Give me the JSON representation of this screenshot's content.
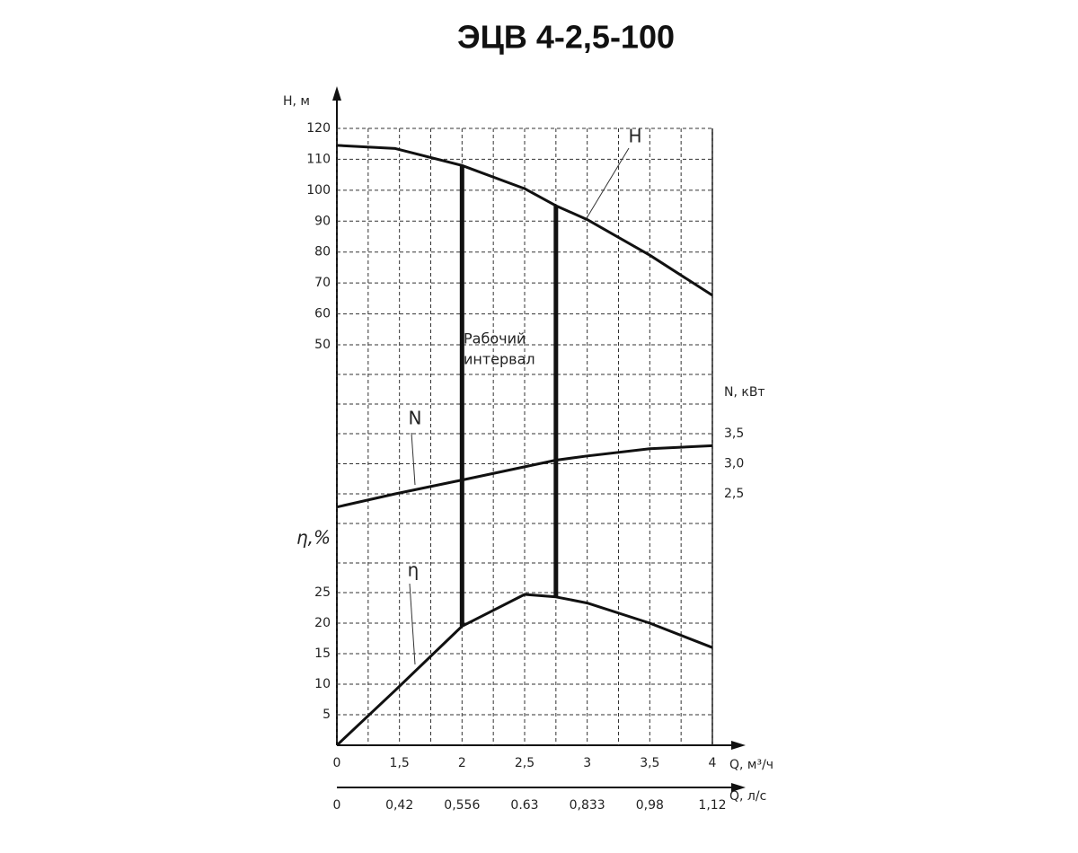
{
  "chart_data": {
    "type": "line",
    "title": "ЭЦВ 4-2,5-100",
    "xlabel": "Q, м³/ч",
    "x2label": "Q, л/с",
    "ylabel": "Н, м",
    "y2label": "N, кВт",
    "y3label": "η,%",
    "working_interval_label": [
      "Рабочий",
      "интервал"
    ],
    "x": [
      0,
      1.4,
      2,
      2.5,
      2.75,
      3,
      3.5,
      4
    ],
    "xlim": [
      0,
      4
    ],
    "xticks": [
      0,
      1.5,
      2,
      2.5,
      3,
      3.5,
      4
    ],
    "xticks_labels": [
      {
        "value": 1.5,
        "label": "1,5"
      },
      {
        "value": 2.5,
        "label": "2,5"
      },
      {
        "value": 3.5,
        "label": "3,5"
      }
    ],
    "x2ticks": [
      0,
      {
        "value": 0.42,
        "label": "0,42"
      },
      {
        "value": 0.556,
        "label": "0,556"
      },
      {
        "value": 0.63,
        "label": "0.63"
      },
      {
        "value": 0.833,
        "label": "0,833"
      },
      {
        "value": 0.98,
        "label": "0,98"
      },
      {
        "value": 1.12,
        "label": "1,12"
      }
    ],
    "ylim": [
      50,
      120
    ],
    "yticks": [
      50,
      60,
      70,
      80,
      90,
      100,
      110,
      120
    ],
    "y2lim": [
      2.5,
      3.5
    ],
    "y2ticks": [
      {
        "value": 2.5,
        "label": "2,5"
      },
      {
        "value": 3.0,
        "label": "3,0"
      },
      {
        "value": 3.5,
        "label": "3,5"
      }
    ],
    "y3lim": [
      0,
      25
    ],
    "y3ticks": [
      5,
      10,
      15,
      20,
      25
    ],
    "working_interval": [
      2,
      2.75
    ],
    "grid": true,
    "series": [
      {
        "name": "H",
        "color": "#111111",
        "axis": "y",
        "values": [
          114.5,
          113.5,
          108,
          100.5,
          95,
          90.5,
          79,
          66
        ]
      },
      {
        "name": "N",
        "color": "#111111",
        "axis": "y2",
        "values": [
          2.28,
          2.5,
          2.73,
          2.95,
          3.06,
          3.13,
          3.25,
          3.3
        ]
      },
      {
        "name": "η",
        "color": "#111111",
        "axis": "y3",
        "values": [
          0,
          9,
          19.5,
          24.7,
          24.3,
          23.3,
          20,
          16
        ]
      }
    ]
  }
}
